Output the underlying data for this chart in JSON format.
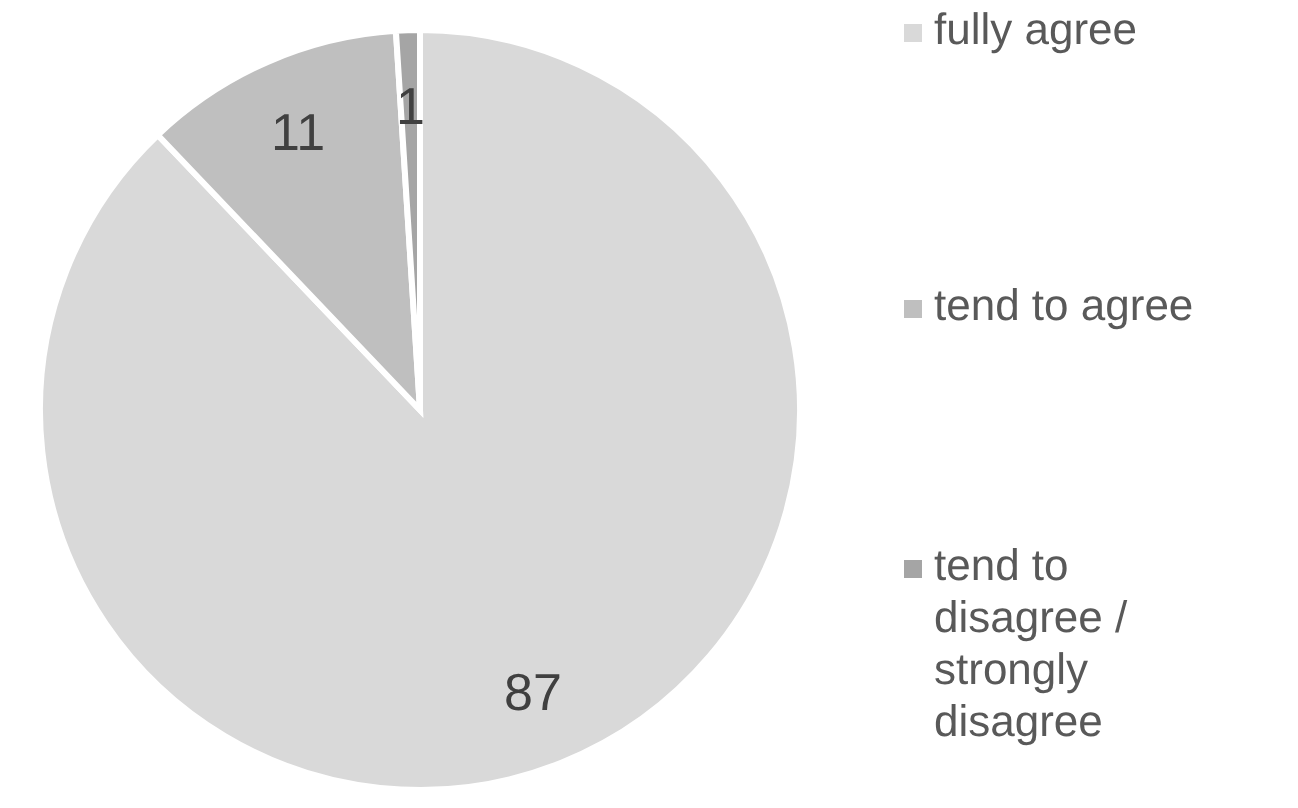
{
  "chart_data": {
    "type": "pie",
    "categories": [
      "fully agree",
      "tend to agree",
      "tend to disagree / strongly disagree"
    ],
    "values": [
      87,
      11,
      1
    ],
    "colors": [
      "#d9d9d9",
      "#bfbfbf",
      "#a5a5a5"
    ],
    "data_labels": true,
    "legend": "right"
  }
}
